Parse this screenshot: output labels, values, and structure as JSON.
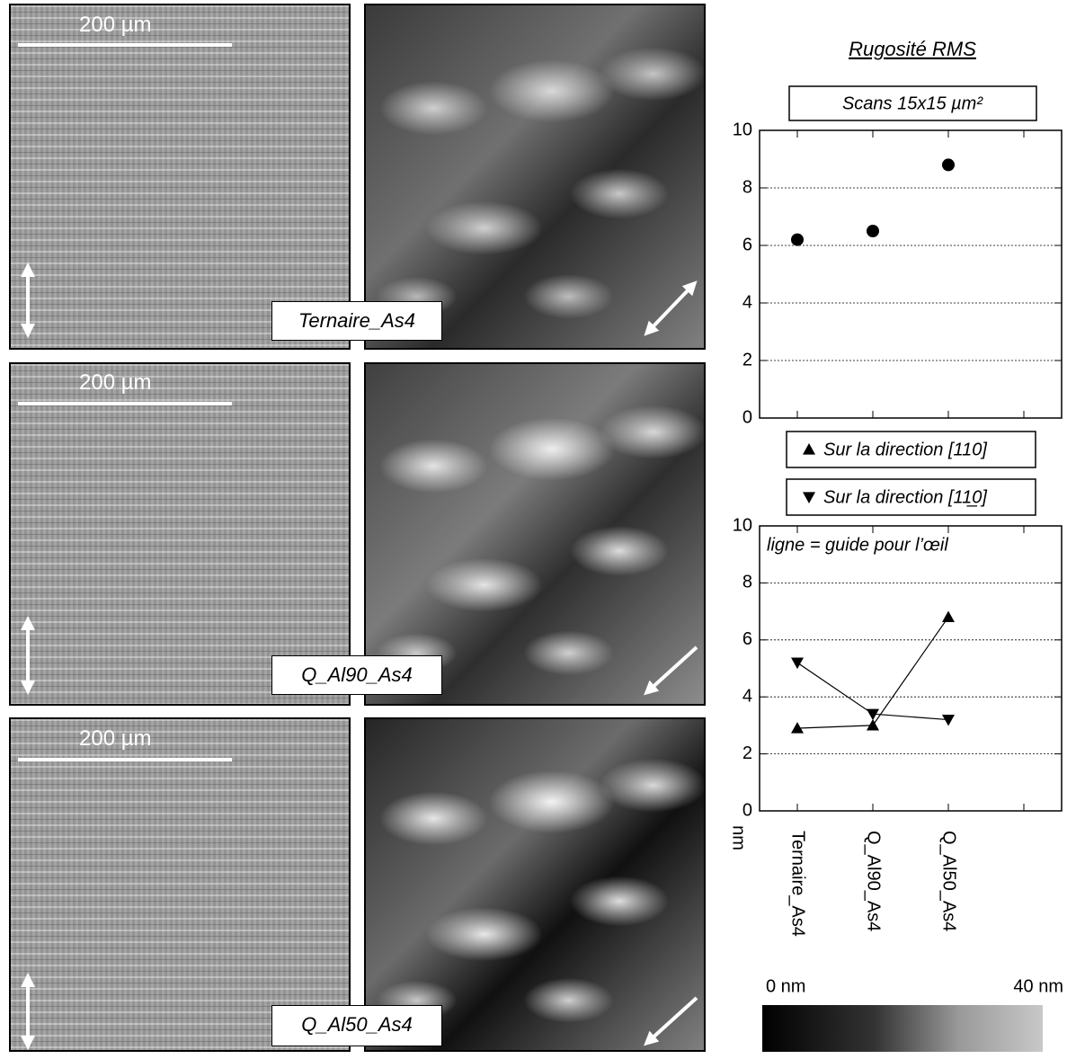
{
  "panels": [
    {
      "label": "Ternaire_As4",
      "scale_bar": "200 µm"
    },
    {
      "label": "Q_Al90_As4",
      "scale_bar": "200 µm"
    },
    {
      "label": "Q_Al50_As4",
      "scale_bar": "200 µm"
    }
  ],
  "chart_data": [
    {
      "type": "scatter",
      "title": "Rugosité RMS",
      "subtitle": "Scans 15x15 µm²",
      "series": [
        {
          "color": "#000000",
          "marker": "circle",
          "values": [
            6.2,
            6.5,
            8.8,
            null
          ]
        }
      ],
      "ylim": [
        0,
        10
      ],
      "yticks": [
        0,
        2,
        4,
        6,
        8,
        10
      ],
      "grid": true
    },
    {
      "type": "line",
      "annotation": "ligne = guide pour l’œil",
      "y_label": "nm",
      "categories": [
        "Ternaire_As4",
        "Q_Al90_As4",
        "Q_Al50_As4",
        null
      ],
      "series": [
        {
          "name": "Sur la direction [110]",
          "color": "#000000",
          "marker": "triangle-up",
          "values": [
            2.9,
            3.0,
            6.8,
            null
          ]
        },
        {
          "name": "Sur la direction [11̲0]",
          "color": "#000000",
          "marker": "triangle-down",
          "values": [
            5.2,
            3.4,
            3.2,
            null
          ]
        }
      ],
      "ylim": [
        0,
        10
      ],
      "yticks": [
        0,
        2,
        4,
        6,
        8,
        10
      ],
      "grid": true
    }
  ],
  "colorbar": {
    "min_label": "0 nm",
    "max_label": "40 nm"
  }
}
